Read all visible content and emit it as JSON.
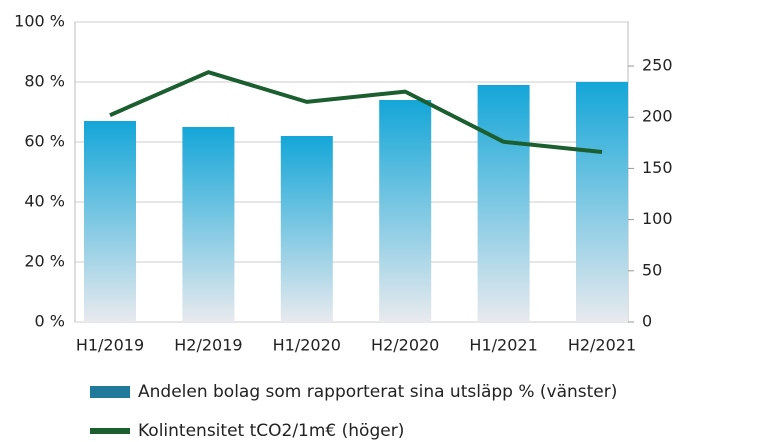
{
  "chart_data": {
    "type": "combo",
    "categories": [
      "H1/2019",
      "H2/2019",
      "H1/2020",
      "H2/2020",
      "H1/2021",
      "H2/2021"
    ],
    "series": [
      {
        "name": "Andelen bolag som rapporterat sina utsläpp % (vänster)",
        "type": "bar",
        "color": "#1f7a99",
        "values": [
          67,
          65,
          62,
          74,
          79,
          80
        ]
      },
      {
        "name": "Kolintensitet tCO2/1m€ (höger)",
        "type": "line",
        "axis": "y2",
        "color": "#1b5e2f",
        "values": [
          202,
          244,
          215,
          225,
          176,
          166
        ]
      }
    ],
    "ylim": [
      0,
      100
    ],
    "yticks": [
      {
        "value": 0,
        "label": "0 %"
      },
      {
        "value": 20,
        "label": "20 %"
      },
      {
        "value": 40,
        "label": "40 %"
      },
      {
        "value": 60,
        "label": "60 %"
      },
      {
        "value": 80,
        "label": "80 %"
      },
      {
        "value": 100,
        "label": "100 %"
      }
    ],
    "y2lim": [
      0,
      293
    ],
    "y2ticks": [
      0,
      50,
      100,
      150,
      200,
      250
    ],
    "grid": true
  }
}
